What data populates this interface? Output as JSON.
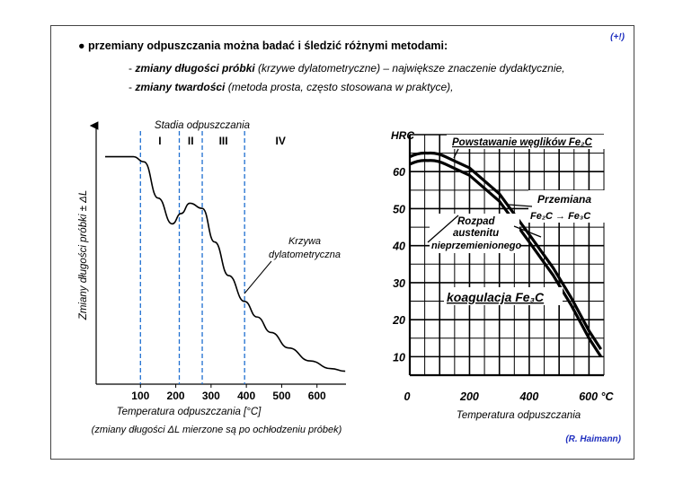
{
  "header": {
    "tag": "(+!)",
    "bullet": "●",
    "intro": "przemiany odpuszczania można badać i śledzić różnymi metodami:",
    "item1": {
      "dash": "- ",
      "bold": "zmiany długości próbki",
      "rest": " (krzywe dylatometryczne) – największe znaczenie dydaktycznie,"
    },
    "item2": {
      "dash": "- ",
      "bold": "zmiany twardości",
      "rest": " (metoda prosta, często stosowana w praktyce),"
    }
  },
  "credit": "(R. Haimann)",
  "chart_data": [
    {
      "type": "line",
      "title": "Stadia odpuszczania",
      "xlabel": "Temperatura odpuszczania [°C]",
      "ylabel": "Zmiany długości próbki ± ΔL",
      "x_ticks": [
        "100",
        "200",
        "300",
        "400",
        "500",
        "600"
      ],
      "xlim": [
        0,
        700
      ],
      "stage_labels": [
        "I",
        "II",
        "III",
        "IV"
      ],
      "stage_boundaries": [
        100,
        210,
        275,
        395
      ],
      "curve_label_line1": "Krzywa",
      "curve_label_line2": "dylatometryczna",
      "curve": {
        "x": [
          0,
          80,
          110,
          150,
          190,
          215,
          240,
          275,
          310,
          350,
          395,
          430,
          470,
          520,
          580,
          640,
          680
        ],
        "y": [
          0.88,
          0.88,
          0.86,
          0.72,
          0.62,
          0.66,
          0.7,
          0.68,
          0.55,
          0.42,
          0.32,
          0.26,
          0.2,
          0.14,
          0.09,
          0.06,
          0.05
        ]
      },
      "caption": "(zmiany długości ΔL mierzone są po ochłodzeniu próbek)"
    },
    {
      "type": "line",
      "ylabel": "HRC",
      "xlabel": "Temperatura odpuszczania",
      "x_ticks": [
        "0",
        "200",
        "400",
        "600 °C"
      ],
      "y_ticks": [
        "10",
        "20",
        "30",
        "40",
        "50",
        "60"
      ],
      "xlim": [
        0,
        650
      ],
      "ylim": [
        5,
        70
      ],
      "annotations": {
        "carbides": "Powstawanie węglików Fe₂C",
        "transformation_line1": "Przemiana",
        "transformation_line2": "Fe₂C → Fe₃C",
        "decomposition_line1": "Rozpad",
        "decomposition_line2": "austenitu",
        "decomposition_line3": "nieprzemienionego",
        "coagulation": "koagulacja Fe₃C"
      },
      "series": [
        {
          "name": "upper",
          "x": [
            0,
            60,
            120,
            200,
            300,
            400,
            480,
            540,
            600,
            640
          ],
          "y": [
            64,
            65,
            64,
            61,
            54,
            43,
            34,
            26,
            17,
            12
          ]
        },
        {
          "name": "lower",
          "x": [
            0,
            60,
            120,
            200,
            300,
            400,
            480,
            540,
            600,
            640
          ],
          "y": [
            62,
            63,
            62,
            59,
            52,
            41,
            32,
            24,
            15,
            10
          ]
        }
      ]
    }
  ]
}
